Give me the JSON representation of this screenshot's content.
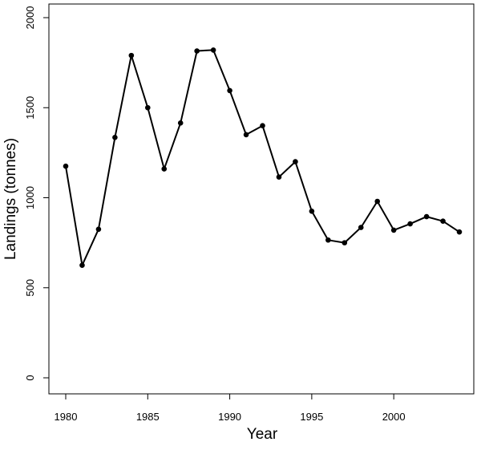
{
  "chart_data": {
    "type": "line",
    "title": "",
    "xlabel": "Year",
    "ylabel": "Landings (tonnes)",
    "xlim": [
      1980,
      2004
    ],
    "ylim": [
      0,
      2000
    ],
    "x_ticks": [
      1980,
      1985,
      1990,
      1995,
      2000
    ],
    "y_ticks": [
      0,
      500,
      1000,
      1500,
      2000
    ],
    "grid": false,
    "legend": "none",
    "series": [
      {
        "color": "#000000",
        "x": [
          1980,
          1981,
          1982,
          1983,
          1984,
          1985,
          1986,
          1987,
          1988,
          1989,
          1990,
          1991,
          1992,
          1993,
          1994,
          1995,
          1996,
          1997,
          1998,
          1999,
          2000,
          2001,
          2002,
          2003,
          2004
        ],
        "values": [
          1175,
          625,
          825,
          1335,
          1790,
          1500,
          1160,
          1415,
          1815,
          1820,
          1595,
          1350,
          1400,
          1115,
          1200,
          925,
          765,
          750,
          835,
          980,
          820,
          855,
          895,
          870,
          810
        ]
      }
    ]
  }
}
